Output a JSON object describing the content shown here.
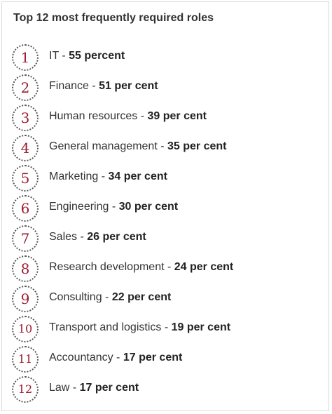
{
  "title": "Top 12 most frequently required roles",
  "roles": [
    {
      "rank": "1",
      "name": "IT",
      "sep": " - ",
      "value": "55 percent"
    },
    {
      "rank": "2",
      "name": "Finance",
      "sep": " - ",
      "value": "51 per cent"
    },
    {
      "rank": "3",
      "name": "Human resources",
      "sep": " - ",
      "value": "39 per cent"
    },
    {
      "rank": "4",
      "name": "General management",
      "sep": " - ",
      "value": "35 per cent"
    },
    {
      "rank": "5",
      "name": "Marketing",
      "sep": " - ",
      "value": "34 per cent"
    },
    {
      "rank": "6",
      "name": "Engineering",
      "sep": " - ",
      "value": "30 per cent"
    },
    {
      "rank": "7",
      "name": "Sales",
      "sep": " - ",
      "value": "26 per cent"
    },
    {
      "rank": "8",
      "name": "Research development",
      "sep": " - ",
      "value": "24 per cent"
    },
    {
      "rank": "9",
      "name": "Consulting",
      "sep": " - ",
      "value": "22 per cent"
    },
    {
      "rank": "10",
      "name": "Transport and logistics",
      "sep": " - ",
      "value": "19 per cent"
    },
    {
      "rank": "11",
      "name": "Accountancy",
      "sep": " - ",
      "value": "17 per cent"
    },
    {
      "rank": "12",
      "name": "Law",
      "sep": " - ",
      "value": "17 per cent"
    }
  ],
  "colors": {
    "rank_number": "#9b1b30",
    "text": "#333333",
    "border": "#d9d9d9"
  }
}
